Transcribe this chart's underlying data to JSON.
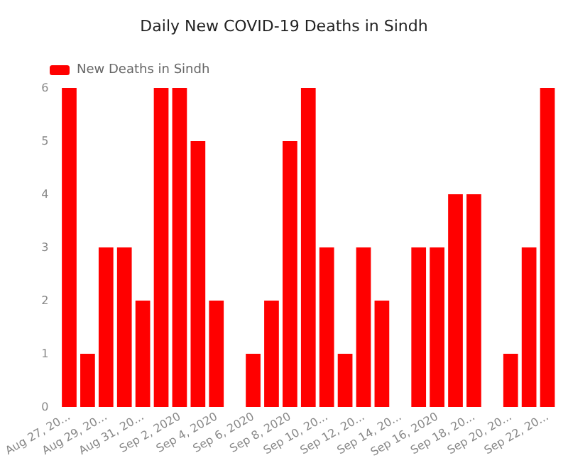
{
  "chart_data": {
    "type": "bar",
    "title": "Daily New COVID-19 Deaths in Sindh",
    "categories": [
      "Aug 27, 20...",
      null,
      "Aug 29, 20...",
      null,
      "Aug 31, 20...",
      null,
      "Sep 2, 2020",
      null,
      "Sep 4, 2020",
      null,
      "Sep 6, 2020",
      null,
      "Sep 8, 2020",
      null,
      "Sep 10, 20...",
      null,
      "Sep 12, 20...",
      null,
      "Sep 14, 20...",
      null,
      "Sep 16, 2020",
      null,
      "Sep 18, 20...",
      null,
      "Sep 20, 20...",
      null,
      "Sep 22, 20..."
    ],
    "series": [
      {
        "name": "New Deaths in Sindh",
        "color": "#ff0000",
        "values": [
          6,
          1,
          3,
          3,
          2,
          6,
          6,
          5,
          2,
          0,
          1,
          2,
          5,
          6,
          3,
          1,
          3,
          2,
          0,
          3,
          3,
          4,
          4,
          0,
          1,
          3,
          6
        ]
      }
    ],
    "ylim": [
      0,
      6
    ],
    "yticks": [
      0,
      1,
      2,
      3,
      4,
      5,
      6
    ],
    "grid": false,
    "legend": "top left"
  }
}
